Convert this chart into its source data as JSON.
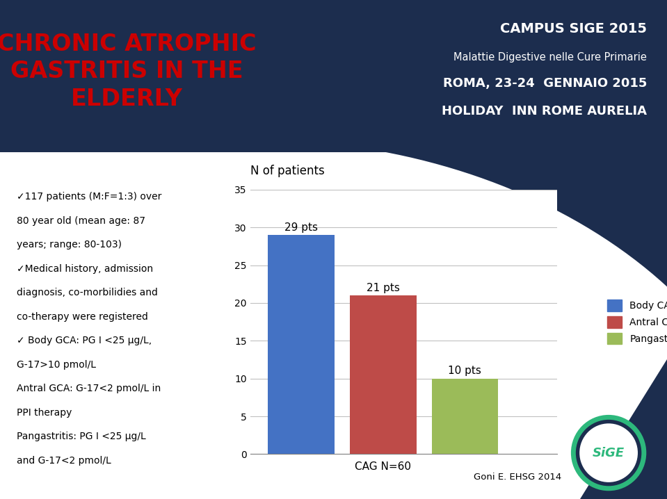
{
  "title_main": "CHRONIC ATROPHIC\nGASTRITIS IN THE\nELDERLY",
  "title_main_color": "#CC0000",
  "header_line1": "CAMPUS SIGE 2015",
  "header_line2": "Malattie Digestive nelle Cure Primarie",
  "header_line3": "ROMA, 23-24  GENNAIO 2015",
  "header_line4": "HOLIDAY  INN ROME AURELIA",
  "header_color": "#FFFFFF",
  "header_bg_color": "#1C2D4E",
  "left_text_lines": [
    "✓117 patients (M:F=1:3) over",
    "80 year old (mean age: 87",
    "years; range: 80-103)",
    "✓Medical history, admission",
    "diagnosis, co-morbilidies and",
    "co-therapy were registered",
    "✓ Body GCA: PG I <25 µg/L,",
    "G-17>10 pmol/L",
    "Antral GCA: G-17<2 pmol/L in",
    "PPI therapy",
    "Pangastritis: PG I <25 µg/L",
    "and G-17<2 pmol/L"
  ],
  "left_text_color": "#000000",
  "chart_ylabel": "N of patients",
  "chart_xlabel": "CAG N=60",
  "values": [
    29,
    21,
    10
  ],
  "labels": [
    "29 pts",
    "21 pts",
    "10 pts"
  ],
  "legend_labels": [
    "Body CAG",
    "Antral CAG",
    "Pangastritis"
  ],
  "bar_colors": [
    "#4472C4",
    "#BE4B48",
    "#9BBB59"
  ],
  "ylim": [
    0,
    35
  ],
  "yticks": [
    0,
    5,
    10,
    15,
    20,
    25,
    30,
    35
  ],
  "footnote": "Goni E. EHSG 2014",
  "bg_color": "#FFFFFF",
  "sige_circle_color": "#2DB87C",
  "sige_dark_color": "#1C2D4E"
}
